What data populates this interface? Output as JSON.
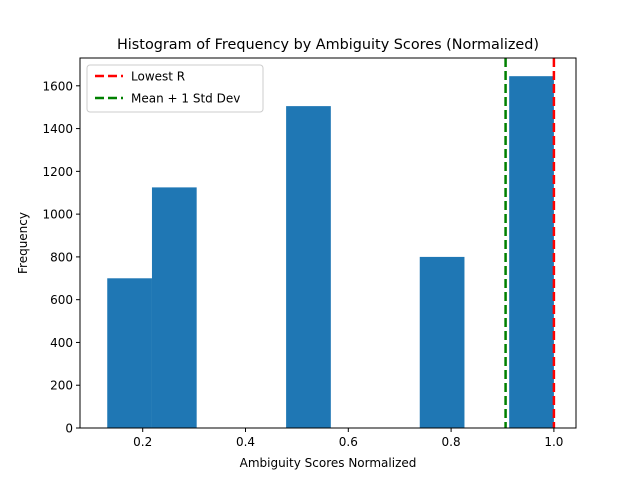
{
  "chart_data": {
    "type": "bar",
    "title": "Histogram of Frequency by Ambiguity Scores (Normalized)",
    "xlabel": "Ambiguity Scores Normalized",
    "ylabel": "Frequency",
    "xlim": [
      0.078,
      1.043
    ],
    "ylim": [
      0,
      1730
    ],
    "grid": false,
    "legend_position": "upper-left",
    "bar_color": "#1f77b4",
    "x_ticks": [
      0.2,
      0.4,
      0.6,
      0.8,
      1.0
    ],
    "x_tick_labels": [
      "0.2",
      "0.4",
      "0.6",
      "0.8",
      "1.0"
    ],
    "y_ticks": [
      0,
      200,
      400,
      600,
      800,
      1000,
      1200,
      1400,
      1600
    ],
    "y_tick_labels": [
      "0",
      "200",
      "400",
      "600",
      "800",
      "1000",
      "1200",
      "1400",
      "1600"
    ],
    "bins": [
      {
        "x0": 0.131,
        "x1": 0.218,
        "value": 700
      },
      {
        "x0": 0.218,
        "x1": 0.305,
        "value": 1125
      },
      {
        "x0": 0.305,
        "x1": 0.392,
        "value": 0
      },
      {
        "x0": 0.392,
        "x1": 0.479,
        "value": 0
      },
      {
        "x0": 0.479,
        "x1": 0.566,
        "value": 1505
      },
      {
        "x0": 0.566,
        "x1": 0.653,
        "value": 0
      },
      {
        "x0": 0.653,
        "x1": 0.739,
        "value": 0
      },
      {
        "x0": 0.739,
        "x1": 0.826,
        "value": 800
      },
      {
        "x0": 0.826,
        "x1": 0.913,
        "value": 0
      },
      {
        "x0": 0.913,
        "x1": 1.0,
        "value": 1645
      }
    ],
    "reference_lines": [
      {
        "name": "Lowest R",
        "x": 1.0,
        "color": "#ff0000",
        "style": "dashed"
      },
      {
        "name": "Mean + 1 Std Dev",
        "x": 0.906,
        "color": "#008000",
        "style": "dashed"
      }
    ]
  }
}
